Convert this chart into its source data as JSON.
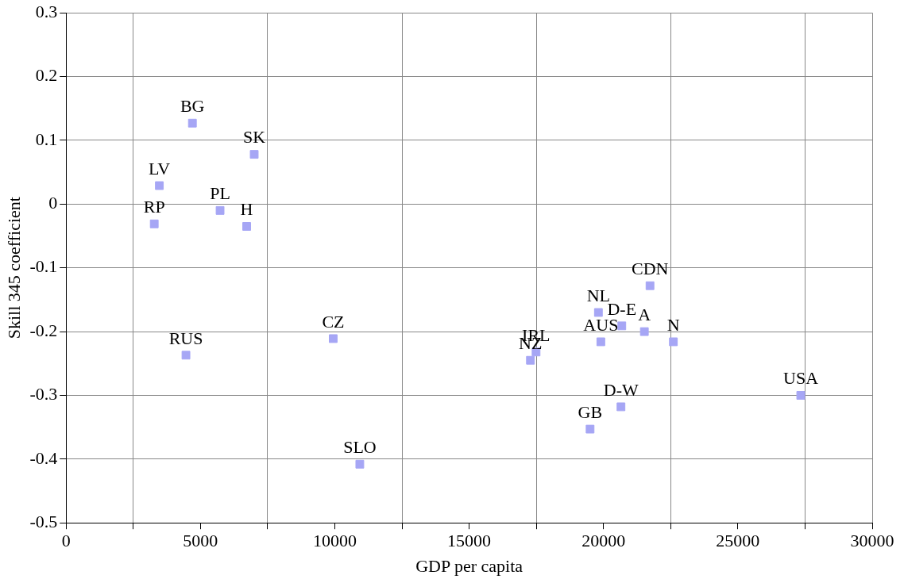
{
  "chart_data": {
    "type": "scatter",
    "xlabel": "GDP per capita",
    "ylabel": "Skill 345 coefficient",
    "xlim": [
      0,
      30000
    ],
    "ylim": [
      -0.5,
      0.3
    ],
    "xticks": [
      0,
      {
        "value": 2500,
        "label": null
      },
      5000,
      {
        "value": 7500,
        "label": null
      },
      10000,
      {
        "value": 12500,
        "label": null
      },
      15000,
      {
        "value": 17500,
        "label": null
      },
      20000,
      {
        "value": 22500,
        "label": null
      },
      25000,
      {
        "value": 27500,
        "label": null
      },
      30000
    ],
    "yticks": [
      -0.5,
      -0.4,
      -0.3,
      -0.2,
      -0.1,
      0,
      0.1,
      0.2,
      0.3
    ],
    "grid": true,
    "legend": false,
    "marker": "square",
    "series": [
      {
        "color": "#a6a6f5",
        "x": [
          4700,
          7000,
          3470,
          5730,
          3280,
          6720,
          4460,
          9940,
          10930,
          17280,
          17490,
          19810,
          20680,
          19900,
          21520,
          22600,
          21730,
          19500,
          20650,
          27340
        ],
        "values": [
          0.127,
          0.078,
          0.029,
          -0.01,
          -0.031,
          -0.035,
          -0.237,
          -0.211,
          -0.408,
          -0.245,
          -0.232,
          -0.17,
          -0.191,
          -0.216,
          -0.2,
          -0.216,
          -0.128,
          -0.353,
          -0.318,
          -0.3
        ],
        "value_labels": [
          "BG",
          "SK",
          "LV",
          "PL",
          "RP",
          "H",
          "RUS",
          "CZ",
          "SLO",
          "NZ",
          "IRL",
          "NL",
          "D-E",
          "AUS",
          "A",
          "N",
          "CDN",
          "GB",
          "D-W",
          "USA"
        ]
      }
    ]
  }
}
